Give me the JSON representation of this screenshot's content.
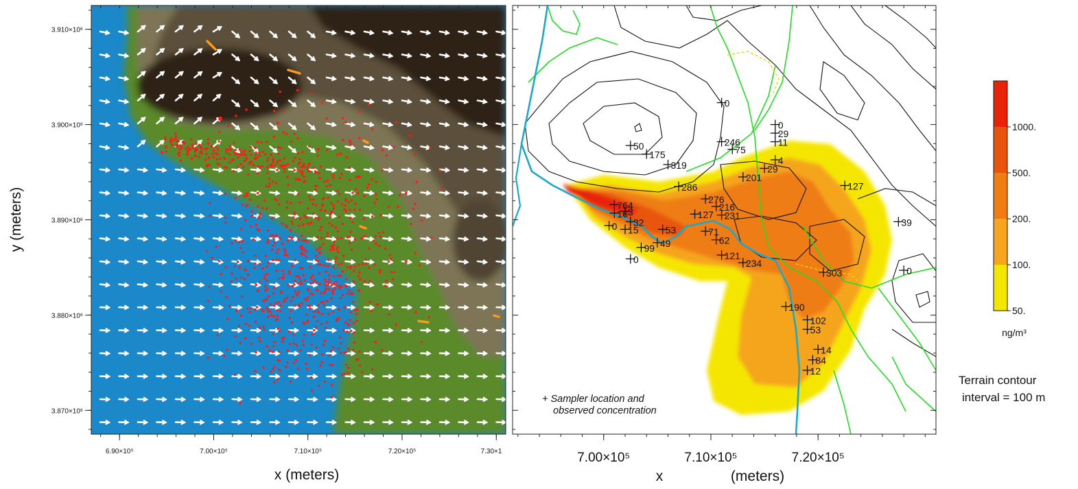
{
  "chart_data": [
    {
      "type": "scatter",
      "xlabel": "x (meters)",
      "ylabel": "y (meters)",
      "xlim": [
        687000,
        731000
      ],
      "ylim": [
        3867500,
        3912500
      ],
      "x_ticks": [
        690000,
        700000,
        710000,
        720000,
        730000
      ],
      "x_tick_labels": [
        "6.90×10⁵",
        "7.00×10⁵",
        "7.10×10⁵",
        "7.20×10⁵",
        "7.30×1"
      ],
      "y_ticks": [
        3870000,
        3880000,
        3890000,
        3900000,
        3910000
      ],
      "y_tick_labels": [
        "3.870×10⁶",
        "3.880×10⁶",
        "3.890×10⁶",
        "3.900×10⁶",
        "3.910×10⁶"
      ],
      "colors": {
        "water": "#1a88c9",
        "low_land": "#5a8a2a",
        "mid_land": "#7d7455",
        "high_land": "#5c503a",
        "peak": "#2d2416",
        "particles": "#ff1a1a",
        "wind_vectors": "#ffffff",
        "sources": "#ff9a1a"
      }
    },
    {
      "type": "heatmap",
      "xlabel_left": "x",
      "xlabel_right": "(meters)",
      "xlim": [
        691500,
        731000
      ],
      "x_ticks": [
        700000,
        710000,
        720000
      ],
      "x_tick_labels": [
        "7.00×10⁵",
        "7.10×10⁵",
        "7.20×10⁵"
      ],
      "colorbar": {
        "unit": "ng/m³",
        "levels": [
          "50.",
          "100.",
          "200.",
          "500.",
          "1000."
        ],
        "colors": [
          "#f5e600",
          "#f5a51e",
          "#ef7d12",
          "#e8540c",
          "#e8230a"
        ]
      },
      "samplers": [
        {
          "x": 711000,
          "y": 3902300,
          "label": "0"
        },
        {
          "x": 716000,
          "y": 3900000,
          "label": "0"
        },
        {
          "x": 716000,
          "y": 3899100,
          "label": "29"
        },
        {
          "x": 711000,
          "y": 3898200,
          "label": "246"
        },
        {
          "x": 712000,
          "y": 3897400,
          "label": "75"
        },
        {
          "x": 716000,
          "y": 3898200,
          "label": "11"
        },
        {
          "x": 716000,
          "y": 3896300,
          "label": "4"
        },
        {
          "x": 715000,
          "y": 3895400,
          "label": "29"
        },
        {
          "x": 713000,
          "y": 3894500,
          "label": "201"
        },
        {
          "x": 702500,
          "y": 3897800,
          "label": "50"
        },
        {
          "x": 704000,
          "y": 3896900,
          "label": "175"
        },
        {
          "x": 706000,
          "y": 3895800,
          "label": "319"
        },
        {
          "x": 707000,
          "y": 3893500,
          "label": "286"
        },
        {
          "x": 709500,
          "y": 3892200,
          "label": "276"
        },
        {
          "x": 710500,
          "y": 3891400,
          "label": "216"
        },
        {
          "x": 711000,
          "y": 3890500,
          "label": "231"
        },
        {
          "x": 708500,
          "y": 3890600,
          "label": "127"
        },
        {
          "x": 701000,
          "y": 3891600,
          "label": "764"
        },
        {
          "x": 701000,
          "y": 3890700,
          "label": "16"
        },
        {
          "x": 702000,
          "y": 3890900,
          "label": "3"
        },
        {
          "x": 702500,
          "y": 3889800,
          "label": "32"
        },
        {
          "x": 705500,
          "y": 3889000,
          "label": "53"
        },
        {
          "x": 700500,
          "y": 3889400,
          "label": "0"
        },
        {
          "x": 702000,
          "y": 3889000,
          "label": "15"
        },
        {
          "x": 709500,
          "y": 3888800,
          "label": "71"
        },
        {
          "x": 710500,
          "y": 3887900,
          "label": "62"
        },
        {
          "x": 705000,
          "y": 3887600,
          "label": "49"
        },
        {
          "x": 703500,
          "y": 3887100,
          "label": "99"
        },
        {
          "x": 702500,
          "y": 3885900,
          "label": "0"
        },
        {
          "x": 711000,
          "y": 3886300,
          "label": "121"
        },
        {
          "x": 713000,
          "y": 3885500,
          "label": "234"
        },
        {
          "x": 720500,
          "y": 3884500,
          "label": "303"
        },
        {
          "x": 722500,
          "y": 3893600,
          "label": "127"
        },
        {
          "x": 727500,
          "y": 3889800,
          "label": "39"
        },
        {
          "x": 728000,
          "y": 3884700,
          "label": "0"
        },
        {
          "x": 717000,
          "y": 3880900,
          "label": "190"
        },
        {
          "x": 719000,
          "y": 3879500,
          "label": "102"
        },
        {
          "x": 719000,
          "y": 3878500,
          "label": "53"
        },
        {
          "x": 720000,
          "y": 3876400,
          "label": "14"
        },
        {
          "x": 719500,
          "y": 3875300,
          "label": "84"
        },
        {
          "x": 719000,
          "y": 3874200,
          "label": "12"
        }
      ]
    }
  ],
  "legend_note": {
    "line1": "+ Sampler location and",
    "line2": "observed concentration"
  },
  "terrain_note": {
    "line1": "Terrain contour",
    "line2": "interval = 100 m"
  }
}
